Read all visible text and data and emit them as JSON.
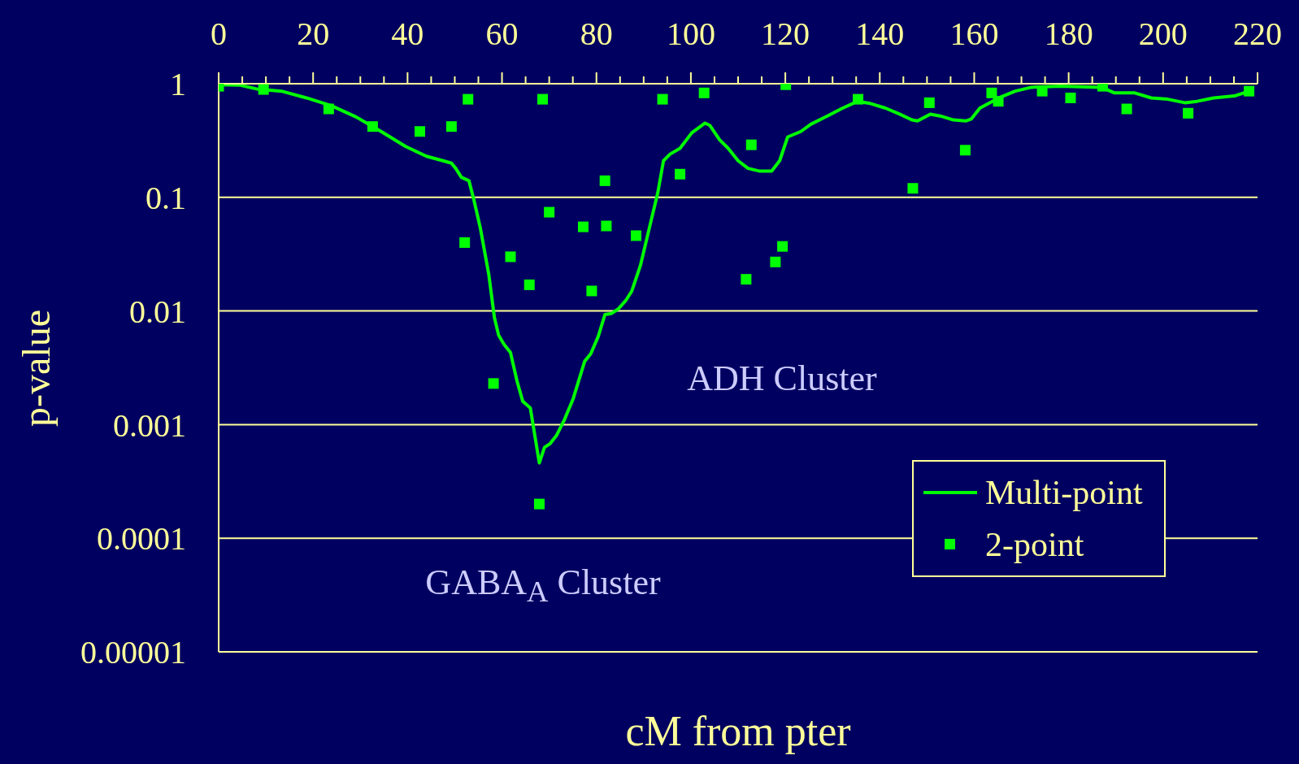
{
  "chart_data": {
    "type": "line",
    "xlabel": "cM from pter",
    "ylabel": "p-value",
    "xlim": [
      0,
      220
    ],
    "xticks": [
      0,
      {
        "value": 5,
        "label": null
      },
      {
        "value": 10,
        "label": null
      },
      {
        "value": 15,
        "label": null
      },
      20,
      {
        "value": 25,
        "label": null
      },
      {
        "value": 30,
        "label": null
      },
      {
        "value": 35,
        "label": null
      },
      40,
      {
        "value": 45,
        "label": null
      },
      {
        "value": 50,
        "label": null
      },
      {
        "value": 55,
        "label": null
      },
      60,
      {
        "value": 65,
        "label": null
      },
      {
        "value": 70,
        "label": null
      },
      {
        "value": 75,
        "label": null
      },
      80,
      {
        "value": 85,
        "label": null
      },
      {
        "value": 90,
        "label": null
      },
      {
        "value": 95,
        "label": null
      },
      100,
      {
        "value": 105,
        "label": null
      },
      {
        "value": 110,
        "label": null
      },
      {
        "value": 115,
        "label": null
      },
      120,
      {
        "value": 125,
        "label": null
      },
      {
        "value": 130,
        "label": null
      },
      {
        "value": 135,
        "label": null
      },
      140,
      {
        "value": 145,
        "label": null
      },
      {
        "value": 150,
        "label": null
      },
      {
        "value": 155,
        "label": null
      },
      160,
      {
        "value": 165,
        "label": null
      },
      {
        "value": 170,
        "label": null
      },
      {
        "value": 175,
        "label": null
      },
      180,
      {
        "value": 185,
        "label": null
      },
      {
        "value": 190,
        "label": null
      },
      {
        "value": 195,
        "label": null
      },
      200,
      {
        "value": 205,
        "label": null
      },
      {
        "value": 210,
        "label": null
      },
      {
        "value": 215,
        "label": null
      },
      220
    ],
    "ylim": [
      1e-05,
      1
    ],
    "yticks": [
      1,
      0.1,
      0.01,
      0.001,
      0.0001,
      {
        "value": 1e-05,
        "label": "0.00001"
      }
    ],
    "log": "y",
    "grid": "y",
    "legend": "bottom right",
    "annotations": [
      "ADH Cluster",
      "GABA$_{A}$ Cluster"
    ],
    "series": [
      {
        "name": "Multi-point",
        "color": "#00ff00",
        "line_style": "solid",
        "marker": "none",
        "x": [
          0,
          4.6,
          8,
          13.3,
          18.6,
          23.9,
          29.1,
          34.4,
          39.6,
          44,
          47.5,
          49.3,
          50.2,
          51.4,
          53,
          54,
          55.4,
          57.2,
          58.4,
          59.3,
          60.4,
          61.8,
          63.2,
          64.4,
          66,
          67.9,
          69,
          70.2,
          71.6,
          73.2,
          75.1,
          77.5,
          78.8,
          80.4,
          81.8,
          83.2,
          84.6,
          86.3,
          87.5,
          89.3,
          91.6,
          93,
          94.2,
          95.6,
          97.7,
          100.2,
          103,
          104,
          106.1,
          107.9,
          110,
          112.1,
          114.6,
          117.1,
          118.8,
          120.5,
          123.3,
          125.4,
          128.9,
          131.8,
          135.3,
          138,
          141.2,
          144.2,
          146.8,
          148,
          150.7,
          152.8,
          155.6,
          158.2,
          159.4,
          161.2,
          165.2,
          168.7,
          172.1,
          178.3,
          187,
          189.7,
          194,
          197.5,
          201,
          204.6,
          207.2,
          210.7,
          215.1,
          218.2
        ],
        "values": [
          0.98,
          0.97,
          0.9,
          0.86,
          0.75,
          0.64,
          0.51,
          0.38,
          0.28,
          0.23,
          0.21,
          0.2,
          0.18,
          0.15,
          0.14,
          0.097,
          0.054,
          0.021,
          0.0087,
          0.0061,
          0.0051,
          0.0043,
          0.0024,
          0.0016,
          0.0014,
          0.00046,
          0.00063,
          0.00068,
          0.00081,
          0.0011,
          0.0017,
          0.0036,
          0.0042,
          0.006,
          0.0093,
          0.0095,
          0.0104,
          0.0125,
          0.015,
          0.025,
          0.063,
          0.11,
          0.21,
          0.24,
          0.27,
          0.37,
          0.45,
          0.43,
          0.32,
          0.27,
          0.21,
          0.18,
          0.17,
          0.17,
          0.21,
          0.34,
          0.38,
          0.44,
          0.52,
          0.6,
          0.7,
          0.67,
          0.61,
          0.54,
          0.48,
          0.47,
          0.54,
          0.52,
          0.48,
          0.47,
          0.49,
          0.61,
          0.75,
          0.86,
          0.93,
          0.95,
          0.93,
          0.83,
          0.83,
          0.75,
          0.73,
          0.68,
          0.7,
          0.75,
          0.78,
          0.86
        ]
      },
      {
        "name": "2-point",
        "type": "scatter",
        "color": "#00ff00",
        "marker": "square",
        "x": [
          0,
          9.5,
          23.3,
          32.6,
          42.6,
          49.3,
          52.8,
          52.1,
          58.2,
          61.8,
          65.8,
          67.9,
          68.6,
          70,
          77.2,
          79,
          81.8,
          82.1,
          88.4,
          94,
          97.7,
          102.8,
          112.8,
          111.7,
          117.9,
          119.4,
          120.1,
          135.4,
          147,
          150.5,
          158.1,
          163.7,
          165.1,
          174.4,
          180.4,
          187.2,
          192.3,
          205.3,
          218.2
        ],
        "values": [
          0.95,
          0.89,
          0.6,
          0.42,
          0.38,
          0.42,
          0.73,
          0.04,
          0.0023,
          0.03,
          0.017,
          0.0002,
          0.73,
          0.074,
          0.055,
          0.015,
          0.14,
          0.056,
          0.046,
          0.73,
          0.16,
          0.83,
          0.29,
          0.019,
          0.027,
          0.037,
          0.98,
          0.73,
          0.12,
          0.68,
          0.26,
          0.83,
          0.7,
          0.86,
          0.75,
          0.95,
          0.6,
          0.55,
          0.86
        ]
      }
    ]
  }
}
